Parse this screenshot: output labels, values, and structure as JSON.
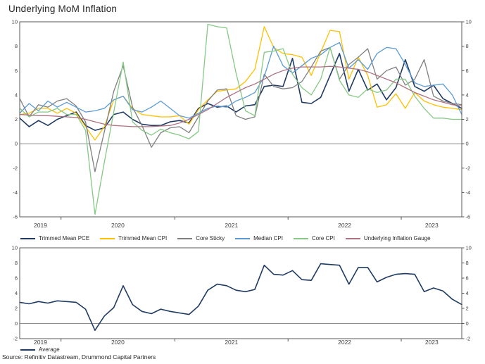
{
  "title": "Underlying MoM Inflation",
  "source": "Source: Refinitiv Datastream, Drummond Capital Partners",
  "styles": {
    "axis_color": "#595959",
    "zero_line_color": "#8c8c8c",
    "tick_text_color": "#404040"
  },
  "chart_data": [
    {
      "type": "line",
      "panel": "top",
      "title": "Underlying MoM Inflation",
      "xlabel": "",
      "ylabel": "",
      "frequency": "monthly",
      "x_start": "2019-08",
      "x_end": "2023-07",
      "x_tick_years": [
        "2019",
        "2020",
        "2021",
        "2022",
        "2023"
      ],
      "ylim": [
        -6,
        10
      ],
      "yticks": [
        10,
        8,
        6,
        4,
        2,
        0,
        -2,
        -4,
        -6
      ],
      "grid": false,
      "legend_position": "below",
      "series": [
        {
          "name": "Trimmed Mean PCE",
          "color": "#1f3b63",
          "values": [
            2.1,
            1.4,
            1.9,
            1.5,
            2.0,
            2.3,
            2.6,
            1.5,
            1.1,
            1.3,
            2.4,
            2.6,
            2.0,
            1.6,
            1.5,
            1.5,
            1.8,
            1.9,
            1.7,
            2.9,
            3.3,
            3.0,
            3.1,
            2.6,
            3.1,
            3.2,
            4.7,
            4.8,
            4.7,
            7.0,
            3.4,
            3.3,
            3.8,
            5.6,
            7.4,
            4.3,
            6.1,
            4.4,
            4.9,
            3.6,
            4.6,
            6.9,
            4.7,
            4.3,
            4.8,
            3.7,
            3.3,
            2.9
          ]
        },
        {
          "name": "Trimmed Mean CPI",
          "color": "#ffc000",
          "values": [
            2.4,
            2.5,
            2.9,
            2.9,
            2.5,
            2.9,
            2.5,
            1.4,
            0.3,
            1.4,
            3.6,
            3.9,
            2.9,
            2.4,
            2.3,
            2.2,
            2.2,
            2.3,
            1.6,
            2.8,
            3.6,
            4.3,
            4.4,
            4.5,
            5.1,
            6.1,
            9.6,
            7.9,
            7.4,
            7.3,
            7.1,
            5.6,
            7.5,
            9.3,
            9.2,
            5.3,
            7.1,
            5.6,
            3.0,
            3.2,
            4.1,
            2.9,
            4.2,
            3.5,
            3.2,
            3.0,
            2.9,
            2.8
          ]
        },
        {
          "name": "Core Sticky",
          "color": "#7f7f7f",
          "values": [
            3.7,
            2.2,
            3.2,
            3.0,
            3.5,
            3.7,
            3.1,
            1.8,
            -2.3,
            1.0,
            4.3,
            6.4,
            3.0,
            1.5,
            -0.3,
            0.9,
            1.3,
            1.4,
            0.9,
            2.2,
            3.5,
            4.4,
            4.5,
            2.3,
            2.0,
            2.2,
            5.7,
            4.7,
            4.5,
            4.6,
            5.1,
            6.3,
            7.6,
            7.9,
            5.3,
            6.5,
            7.1,
            7.8,
            5.3,
            6.0,
            6.3,
            4.8,
            5.3,
            6.9,
            3.9,
            3.5,
            3.3,
            3.2
          ]
        },
        {
          "name": "Median CPI",
          "color": "#5b9bd5",
          "values": [
            2.5,
            3.3,
            2.7,
            3.5,
            3.0,
            3.4,
            3.0,
            2.6,
            2.7,
            2.9,
            3.6,
            3.9,
            2.8,
            2.6,
            3.0,
            3.5,
            2.9,
            2.3,
            2.1,
            2.5,
            2.9,
            3.1,
            3.0,
            3.5,
            3.8,
            4.2,
            5.5,
            8.0,
            6.4,
            5.8,
            6.4,
            7.0,
            7.3,
            7.9,
            8.3,
            6.2,
            6.9,
            6.1,
            7.4,
            7.9,
            7.8,
            6.5,
            5.0,
            4.7,
            4.8,
            4.9,
            4.0,
            2.4
          ]
        },
        {
          "name": "Core CPI",
          "color": "#85c985",
          "values": [
            2.9,
            2.2,
            2.6,
            2.6,
            2.9,
            2.4,
            2.4,
            1.1,
            -5.8,
            -1.5,
            2.6,
            6.7,
            1.8,
            1.1,
            0.7,
            1.2,
            0.9,
            0.7,
            0.4,
            1.0,
            9.8,
            9.6,
            9.5,
            5.8,
            2.7,
            2.3,
            7.5,
            7.6,
            7.8,
            5.7,
            4.6,
            4.0,
            5.3,
            7.9,
            5.2,
            4.0,
            3.8,
            4.5,
            4.2,
            4.4,
            5.3,
            5.3,
            3.9,
            2.9,
            2.1,
            2.1,
            2.0,
            2.0
          ]
        },
        {
          "name": "Underlying Inflation Gauge",
          "color": "#ae7280",
          "values": [
            2.4,
            2.35,
            2.3,
            2.3,
            2.25,
            2.2,
            2.15,
            2.0,
            1.8,
            1.6,
            1.5,
            1.45,
            1.4,
            1.4,
            1.4,
            1.45,
            1.5,
            1.7,
            2.0,
            2.4,
            2.8,
            3.3,
            3.8,
            4.2,
            4.6,
            4.9,
            5.3,
            5.7,
            6.0,
            6.2,
            6.3,
            6.3,
            6.3,
            6.35,
            6.3,
            6.2,
            6.1,
            5.9,
            5.6,
            5.3,
            5.0,
            4.6,
            4.2,
            3.9,
            3.6,
            3.4,
            3.2,
            3.1
          ]
        }
      ]
    },
    {
      "type": "line",
      "panel": "bottom",
      "title": "",
      "xlabel": "",
      "ylabel": "",
      "frequency": "monthly",
      "x_start": "2019-08",
      "x_end": "2023-07",
      "x_tick_years": [
        "2019",
        "2020",
        "2021",
        "2022",
        "2023"
      ],
      "ylim": [
        -2,
        10
      ],
      "yticks": [
        10,
        8,
        6,
        4,
        2,
        0,
        -2
      ],
      "grid": false,
      "legend_position": "below",
      "series": [
        {
          "name": "Average",
          "color": "#1f3b63",
          "values": [
            2.8,
            2.6,
            2.9,
            2.7,
            3.0,
            2.9,
            2.8,
            1.9,
            -0.9,
            1.0,
            2.1,
            5.0,
            2.5,
            1.6,
            1.3,
            1.9,
            1.6,
            1.4,
            1.2,
            2.3,
            4.4,
            5.2,
            5.0,
            4.4,
            4.2,
            4.5,
            7.7,
            6.5,
            6.4,
            7.0,
            5.8,
            5.7,
            7.9,
            7.8,
            7.7,
            5.2,
            7.4,
            7.4,
            5.5,
            6.1,
            6.5,
            6.6,
            6.5,
            4.2,
            4.7,
            4.3,
            3.2,
            2.5
          ]
        }
      ]
    }
  ]
}
